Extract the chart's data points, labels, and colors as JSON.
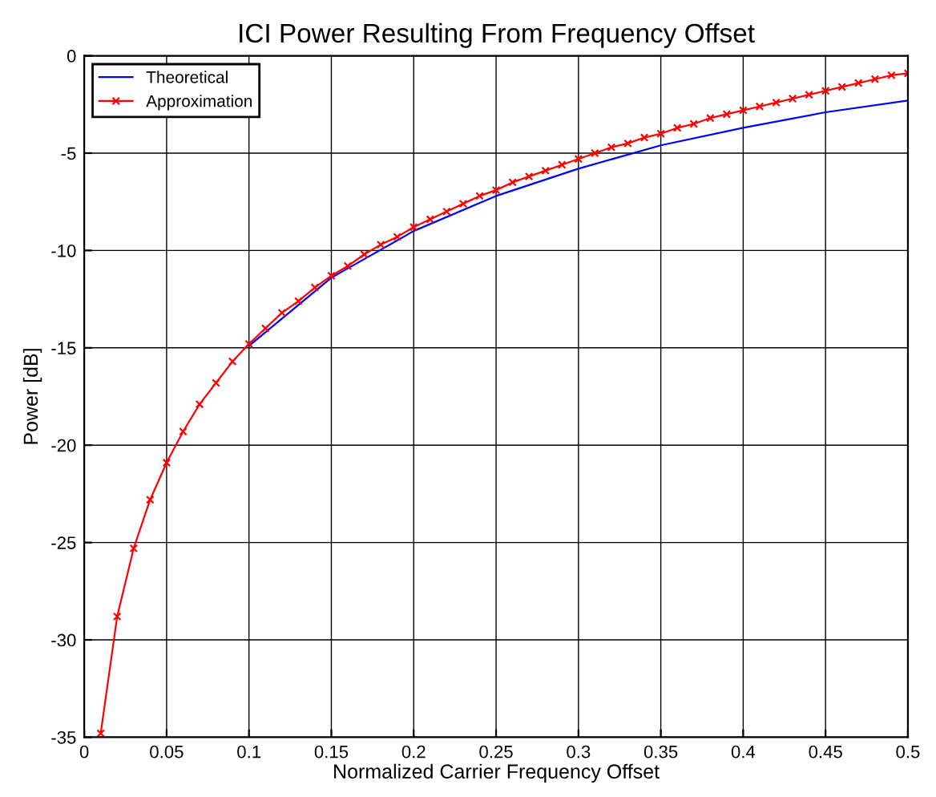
{
  "chart_data": {
    "type": "line",
    "title": "ICI Power Resulting From Frequency Offset",
    "xlabel": "Normalized Carrier Frequency Offset",
    "ylabel": "Power [dB]",
    "xlim": [
      0,
      0.5
    ],
    "xticks": [
      0,
      0.05,
      0.1,
      0.15,
      0.2,
      0.25,
      0.3,
      0.35,
      0.4,
      0.45,
      0.5
    ],
    "ylim": [
      -35,
      0
    ],
    "yticks": [
      -35,
      -30,
      -25,
      -20,
      -15,
      -10,
      -5,
      0
    ],
    "grid": true,
    "legend": "top left",
    "series": [
      {
        "name": "Theoretical",
        "color": "#0000ff",
        "marker": "none",
        "x": [
          0.1,
          0.15,
          0.2,
          0.25,
          0.3,
          0.35,
          0.4,
          0.45,
          0.5
        ],
        "values": [
          -14.9,
          -11.4,
          -9.0,
          -7.2,
          -5.8,
          -4.6,
          -3.7,
          -2.9,
          -2.3
        ]
      },
      {
        "name": "Approximation",
        "color": "#ff0000",
        "marker": "cross",
        "x": [
          0.01,
          0.02,
          0.03,
          0.04,
          0.05,
          0.06,
          0.07,
          0.08,
          0.09,
          0.1,
          0.11,
          0.12,
          0.13,
          0.14,
          0.15,
          0.16,
          0.17,
          0.18,
          0.19,
          0.2,
          0.21,
          0.22,
          0.23,
          0.24,
          0.25,
          0.26,
          0.27,
          0.28,
          0.29,
          0.3,
          0.31,
          0.32,
          0.33,
          0.34,
          0.35,
          0.36,
          0.37,
          0.38,
          0.39,
          0.4,
          0.41,
          0.42,
          0.43,
          0.44,
          0.45,
          0.46,
          0.47,
          0.48,
          0.49,
          0.5
        ],
        "values": [
          -34.8,
          -28.8,
          -25.3,
          -22.8,
          -20.9,
          -19.3,
          -17.9,
          -16.8,
          -15.7,
          -14.8,
          -14.0,
          -13.2,
          -12.6,
          -11.9,
          -11.3,
          -10.8,
          -10.2,
          -9.7,
          -9.3,
          -8.8,
          -8.4,
          -8.0,
          -7.6,
          -7.2,
          -6.9,
          -6.5,
          -6.2,
          -5.9,
          -5.6,
          -5.3,
          -5.0,
          -4.7,
          -4.5,
          -4.2,
          -4.0,
          -3.7,
          -3.5,
          -3.2,
          -3.0,
          -2.8,
          -2.6,
          -2.4,
          -2.2,
          -2.0,
          -1.8,
          -1.6,
          -1.4,
          -1.2,
          -1.0,
          -0.9
        ]
      }
    ]
  }
}
